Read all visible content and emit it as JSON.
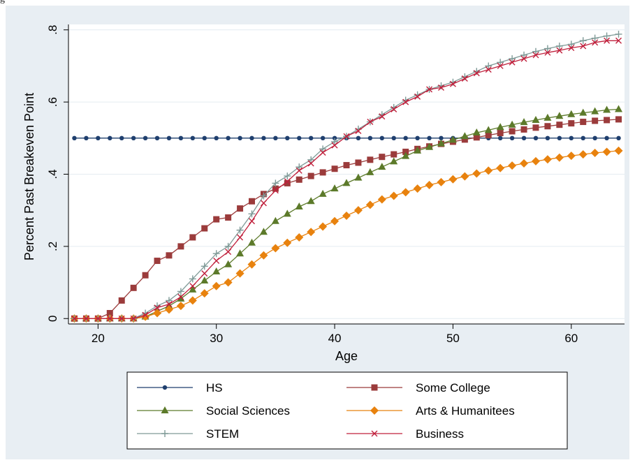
{
  "page": {
    "cut_off_text": "g"
  },
  "chart_data": {
    "type": "line",
    "xlabel": "Age",
    "ylabel": "Percent Past Breakeven Point",
    "xlim": [
      17.5,
      64.5
    ],
    "ylim": [
      -0.015,
      0.815
    ],
    "x_ticks": [
      20,
      30,
      40,
      50,
      60
    ],
    "x_tick_labels": [
      "20",
      "30",
      "40",
      "50",
      "60"
    ],
    "y_ticks": [
      0,
      0.2,
      0.4,
      0.6,
      0.8
    ],
    "y_tick_labels": [
      "0",
      ".2",
      ".4",
      ".6",
      ".8"
    ],
    "grid": true,
    "legend_position": "bottom",
    "legend_columns": 2,
    "x": [
      18,
      19,
      20,
      21,
      22,
      23,
      24,
      25,
      26,
      27,
      28,
      29,
      30,
      31,
      32,
      33,
      34,
      35,
      36,
      37,
      38,
      39,
      40,
      41,
      42,
      43,
      44,
      45,
      46,
      47,
      48,
      49,
      50,
      51,
      52,
      53,
      54,
      55,
      56,
      57,
      58,
      59,
      60,
      61,
      62,
      63,
      64
    ],
    "series": [
      {
        "name": "HS",
        "color": "#1f3f6e",
        "marker": "circle",
        "values": [
          0.5,
          0.5,
          0.5,
          0.5,
          0.5,
          0.5,
          0.5,
          0.5,
          0.5,
          0.5,
          0.5,
          0.5,
          0.5,
          0.5,
          0.5,
          0.5,
          0.5,
          0.5,
          0.5,
          0.5,
          0.5,
          0.5,
          0.5,
          0.5,
          0.5,
          0.5,
          0.5,
          0.5,
          0.5,
          0.5,
          0.5,
          0.5,
          0.5,
          0.5,
          0.5,
          0.5,
          0.5,
          0.5,
          0.5,
          0.5,
          0.5,
          0.5,
          0.5,
          0.5,
          0.5,
          0.5,
          0.5
        ]
      },
      {
        "name": "Some College",
        "color": "#9b3b3b",
        "marker": "square",
        "values": [
          0,
          0,
          0,
          0.015,
          0.05,
          0.085,
          0.12,
          0.16,
          0.175,
          0.2,
          0.225,
          0.25,
          0.275,
          0.28,
          0.305,
          0.325,
          0.345,
          0.36,
          0.375,
          0.385,
          0.395,
          0.405,
          0.415,
          0.425,
          0.432,
          0.44,
          0.448,
          0.455,
          0.462,
          0.47,
          0.477,
          0.484,
          0.49,
          0.496,
          0.502,
          0.508,
          0.514,
          0.519,
          0.524,
          0.529,
          0.533,
          0.537,
          0.541,
          0.545,
          0.548,
          0.55,
          0.552
        ]
      },
      {
        "name": "Social Sciences",
        "color": "#5c7a2a",
        "marker": "triangle",
        "values": [
          0,
          0,
          0,
          0,
          0,
          0,
          0.005,
          0.02,
          0.035,
          0.055,
          0.08,
          0.105,
          0.13,
          0.15,
          0.18,
          0.21,
          0.24,
          0.27,
          0.29,
          0.31,
          0.325,
          0.345,
          0.36,
          0.375,
          0.39,
          0.405,
          0.42,
          0.435,
          0.45,
          0.465,
          0.475,
          0.485,
          0.495,
          0.505,
          0.515,
          0.522,
          0.53,
          0.537,
          0.544,
          0.55,
          0.556,
          0.561,
          0.566,
          0.57,
          0.574,
          0.578,
          0.58
        ]
      },
      {
        "name": "Arts & Humanitees",
        "color": "#e8820e",
        "marker": "diamond",
        "values": [
          0,
          0,
          0,
          0,
          0,
          0,
          0.005,
          0.015,
          0.025,
          0.035,
          0.05,
          0.07,
          0.09,
          0.1,
          0.125,
          0.15,
          0.175,
          0.195,
          0.21,
          0.225,
          0.24,
          0.255,
          0.27,
          0.285,
          0.3,
          0.315,
          0.33,
          0.34,
          0.35,
          0.36,
          0.37,
          0.378,
          0.386,
          0.394,
          0.402,
          0.41,
          0.417,
          0.424,
          0.43,
          0.436,
          0.441,
          0.446,
          0.451,
          0.455,
          0.459,
          0.462,
          0.465
        ]
      },
      {
        "name": "STEM",
        "color": "#7f9a97",
        "marker": "plus",
        "values": [
          0,
          0,
          0,
          0,
          0,
          0,
          0.015,
          0.035,
          0.05,
          0.075,
          0.11,
          0.145,
          0.18,
          0.2,
          0.245,
          0.29,
          0.34,
          0.375,
          0.395,
          0.42,
          0.44,
          0.47,
          0.49,
          0.505,
          0.525,
          0.545,
          0.565,
          0.585,
          0.605,
          0.62,
          0.635,
          0.645,
          0.655,
          0.67,
          0.685,
          0.7,
          0.71,
          0.72,
          0.73,
          0.74,
          0.748,
          0.755,
          0.76,
          0.77,
          0.777,
          0.783,
          0.788
        ]
      },
      {
        "name": "Business",
        "color": "#c0203c",
        "marker": "x",
        "values": [
          0,
          0,
          0,
          0,
          0,
          0,
          0.01,
          0.03,
          0.04,
          0.06,
          0.09,
          0.125,
          0.16,
          0.185,
          0.225,
          0.27,
          0.32,
          0.355,
          0.38,
          0.41,
          0.43,
          0.46,
          0.48,
          0.505,
          0.52,
          0.545,
          0.56,
          0.58,
          0.6,
          0.615,
          0.635,
          0.64,
          0.65,
          0.665,
          0.68,
          0.69,
          0.7,
          0.71,
          0.72,
          0.73,
          0.737,
          0.743,
          0.75,
          0.755,
          0.765,
          0.77,
          0.77
        ]
      }
    ]
  }
}
